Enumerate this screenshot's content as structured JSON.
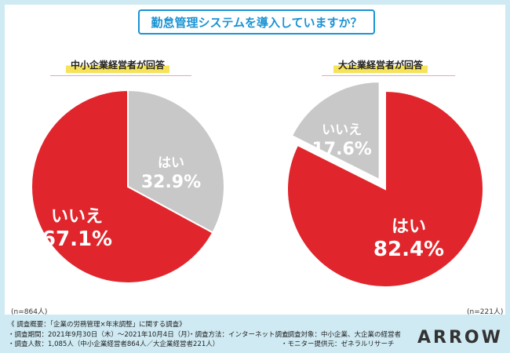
{
  "title": "勤怠管理システムを導入していますか？",
  "chart_data": [
    {
      "type": "pie",
      "title": "中小企業経営者が回答",
      "sample_size": "(n=864人)",
      "slices": [
        {
          "label": "はい",
          "value": 32.9,
          "value_label": "32.9%",
          "color": "#c8c8c8",
          "text_color": "#ffffff"
        },
        {
          "label": "いいえ",
          "value": 67.1,
          "value_label": "67.1%",
          "color": "#e0262c",
          "text_color": "#ffffff"
        }
      ]
    },
    {
      "type": "pie",
      "title": "大企業経営者が回答",
      "sample_size": "(n=221人)",
      "slices": [
        {
          "label": "はい",
          "value": 82.4,
          "value_label": "82.4%",
          "color": "#e0262c",
          "text_color": "#ffffff"
        },
        {
          "label": "いいえ",
          "value": 17.6,
          "value_label": "17.6%",
          "color": "#c8c8c8",
          "text_color": "#ffffff"
        }
      ]
    }
  ],
  "footer": {
    "heading": "《 調査概要：「企業の労務管理×年末調整」に関する調査》",
    "period": "・調査期間：2021年9月30日（木）〜2021年10月4日（月）",
    "method": "・調査方法：インターネット調査",
    "target": "・調査対象：中小企業、大企業の経営者",
    "count": "・調査人数：1,085人（中小企業経営者864人／大企業経営者221人）",
    "provider": "・モニター提供元：ゼネラルリサーチ"
  },
  "logo": "ARROW"
}
